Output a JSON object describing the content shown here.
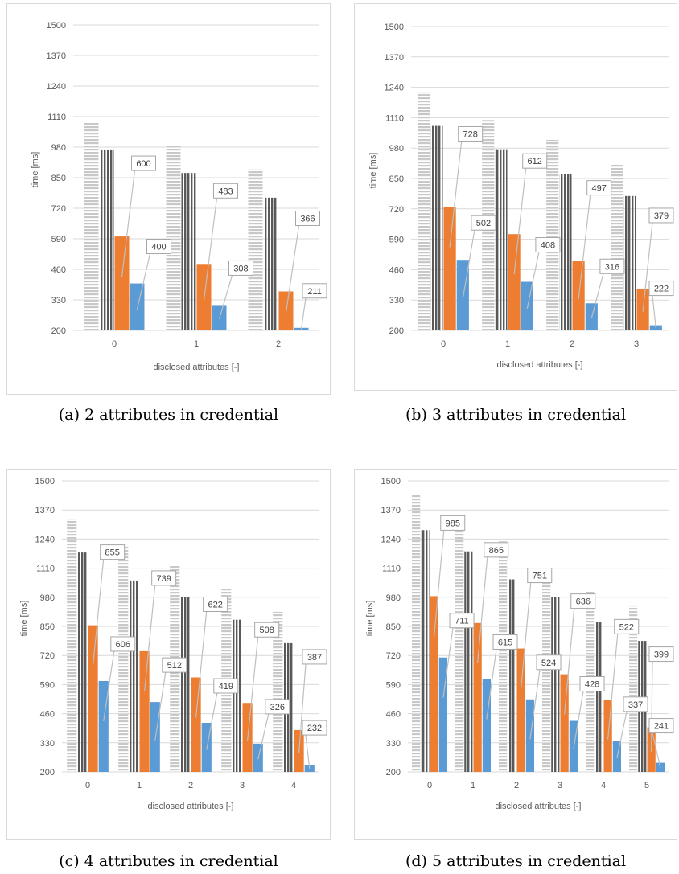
{
  "chart_data": [
    {
      "type": "bar",
      "caption": "(a) 2 attributes in credential",
      "categories": [
        "0",
        "1",
        "2"
      ],
      "ylabel": "time [ms]",
      "xlabel": "disclosed attributes [-]",
      "ylim": [
        200,
        1500
      ],
      "yticks": [
        200,
        330,
        460,
        590,
        720,
        850,
        980,
        1110,
        1240,
        1370,
        1500
      ],
      "grid": true,
      "series": [
        {
          "values": [
            1085,
            990,
            885
          ],
          "color": "#c8c8c8",
          "pattern": "horizontal-stripes"
        },
        {
          "values": [
            970,
            870,
            765
          ],
          "color": "#595959",
          "pattern": "vertical-stripes"
        },
        {
          "values": [
            600,
            483,
            366
          ],
          "color": "#ed7d31",
          "pattern": "solid",
          "labeled": true
        },
        {
          "values": [
            400,
            308,
            211
          ],
          "color": "#5b9bd5",
          "pattern": "solid",
          "labeled": true
        }
      ]
    },
    {
      "type": "bar",
      "caption": "(b) 3 attributes in credential",
      "categories": [
        "0",
        "1",
        "2",
        "3"
      ],
      "ylabel": "time [ms]",
      "xlabel": "disclosed attributes [-]",
      "ylim": [
        200,
        1500
      ],
      "yticks": [
        200,
        330,
        460,
        590,
        720,
        850,
        980,
        1110,
        1240,
        1370,
        1500
      ],
      "grid": true,
      "series": [
        {
          "values": [
            1220,
            1100,
            1015,
            910
          ],
          "color": "#c8c8c8",
          "pattern": "horizontal-stripes"
        },
        {
          "values": [
            1075,
            975,
            870,
            775
          ],
          "color": "#595959",
          "pattern": "vertical-stripes"
        },
        {
          "values": [
            728,
            612,
            497,
            379
          ],
          "color": "#ed7d31",
          "pattern": "solid",
          "labeled": true
        },
        {
          "values": [
            502,
            408,
            316,
            222
          ],
          "color": "#5b9bd5",
          "pattern": "solid",
          "labeled": true
        }
      ]
    },
    {
      "type": "bar",
      "caption": "(c) 4 attributes in credential",
      "categories": [
        "0",
        "1",
        "2",
        "3",
        "4"
      ],
      "ylabel": "time [ms]",
      "xlabel": "disclosed attributes [-]",
      "ylim": [
        200,
        1500
      ],
      "yticks": [
        200,
        330,
        460,
        590,
        720,
        850,
        980,
        1110,
        1240,
        1370,
        1500
      ],
      "grid": true,
      "series": [
        {
          "values": [
            1330,
            1210,
            1120,
            1020,
            915
          ],
          "color": "#c8c8c8",
          "pattern": "horizontal-stripes"
        },
        {
          "values": [
            1180,
            1055,
            980,
            880,
            775
          ],
          "color": "#595959",
          "pattern": "vertical-stripes"
        },
        {
          "values": [
            855,
            739,
            622,
            508,
            387
          ],
          "color": "#ed7d31",
          "pattern": "solid",
          "labeled": true
        },
        {
          "values": [
            606,
            512,
            419,
            326,
            232
          ],
          "color": "#5b9bd5",
          "pattern": "solid",
          "labeled": true
        }
      ]
    },
    {
      "type": "bar",
      "caption": "(d) 5 attributes in credential",
      "categories": [
        "0",
        "1",
        "2",
        "3",
        "4",
        "5"
      ],
      "ylabel": "time [ms]",
      "xlabel": "disclosed attributes [-]",
      "ylim": [
        200,
        1500
      ],
      "yticks": [
        200,
        330,
        460,
        590,
        720,
        850,
        980,
        1110,
        1240,
        1370,
        1500
      ],
      "grid": true,
      "series": [
        {
          "values": [
            1440,
            1340,
            1230,
            1110,
            1010,
            940
          ],
          "color": "#c8c8c8",
          "pattern": "horizontal-stripes"
        },
        {
          "values": [
            1280,
            1185,
            1060,
            980,
            870,
            785
          ],
          "color": "#595959",
          "pattern": "vertical-stripes"
        },
        {
          "values": [
            985,
            865,
            751,
            636,
            522,
            399
          ],
          "color": "#ed7d31",
          "pattern": "solid",
          "labeled": true
        },
        {
          "values": [
            711,
            615,
            524,
            428,
            337,
            241
          ],
          "color": "#5b9bd5",
          "pattern": "solid",
          "labeled": true
        }
      ]
    }
  ]
}
